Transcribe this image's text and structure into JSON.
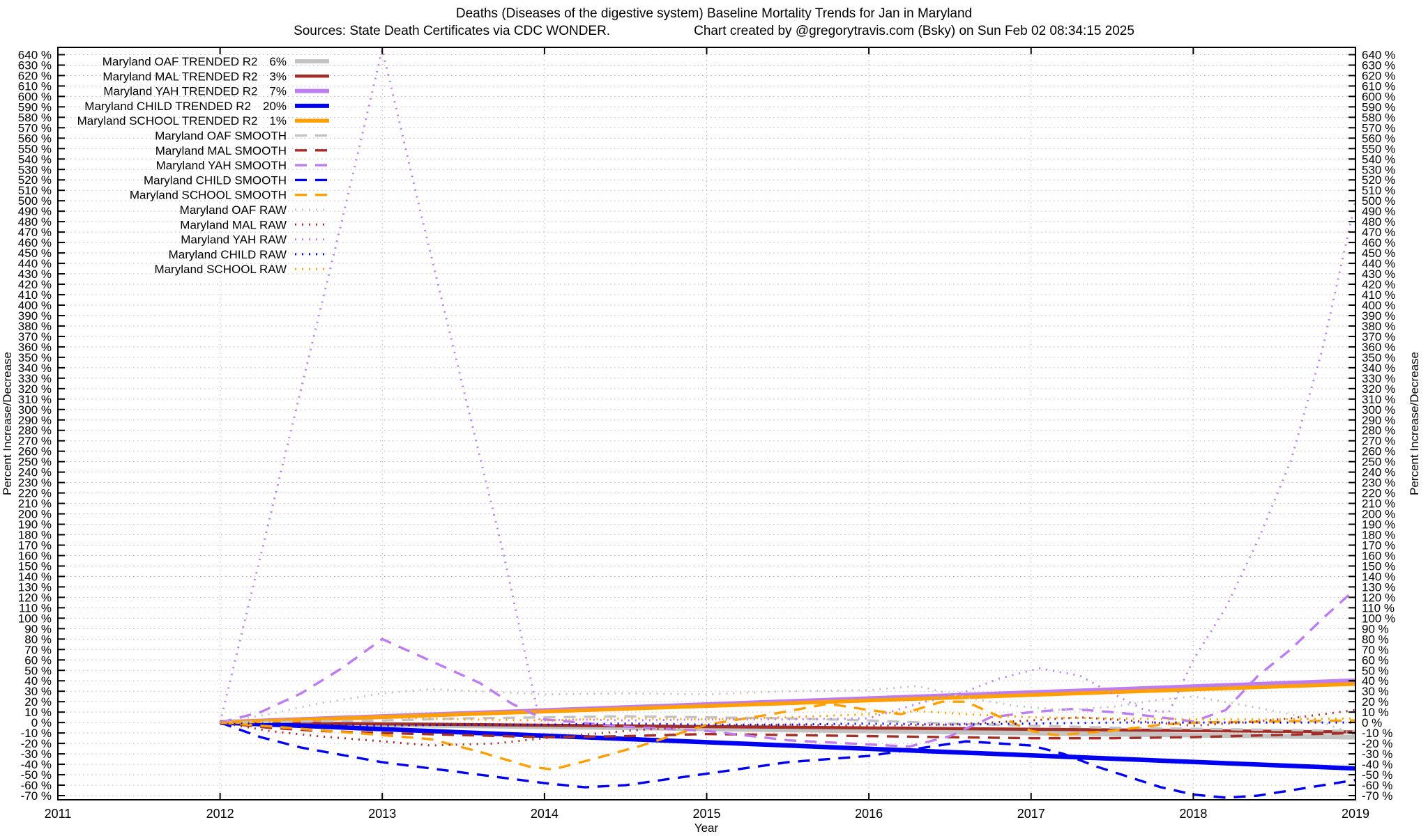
{
  "chart_data": {
    "type": "line",
    "title": "Deaths (Diseases of the digestive system)  Baseline Mortality Trends for Jan in Maryland",
    "sources": "Sources: State Death Certificates via CDC WONDER.",
    "credit": "Chart created by @gregorytravis.com (Bsky) on Sun Feb 02 08:34:15 2025",
    "xlabel": "Year",
    "ylabel_left": "Percent Increase/Decrease",
    "ylabel_right": "Percent Increase/Decrease",
    "xlim": [
      2011,
      2019
    ],
    "ylim": [
      -74,
      647
    ],
    "xticks": [
      2011,
      2012,
      2013,
      2014,
      2015,
      2016,
      2017,
      2018,
      2019
    ],
    "yticks": {
      "min": -70,
      "max": 640,
      "step": 10,
      "suffix": " %"
    },
    "grid": "dotted",
    "legend_position": "top-left-inside",
    "colors": {
      "gray": "#c3c3c3",
      "maroon": "#a42d26",
      "purple": "#bd7cf0",
      "blue": "#0000f2",
      "orange": "#ff9f00"
    },
    "groups": {
      "trended": {
        "style": "solid"
      },
      "smooth": {
        "style": "dashed"
      },
      "raw": {
        "style": "dotted"
      }
    },
    "series": [
      {
        "id": "oaf-trended",
        "label": "Maryland OAF TRENDED R2",
        "r2": "6%",
        "group": "trended",
        "color": "gray",
        "width": 7,
        "points": [
          [
            2012,
            0
          ],
          [
            2019,
            -14
          ]
        ]
      },
      {
        "id": "mal-trended",
        "label": "Maryland MAL TRENDED R2",
        "r2": "3%",
        "group": "trended",
        "color": "maroon",
        "width": 4.5,
        "points": [
          [
            2012,
            0
          ],
          [
            2019,
            -9
          ]
        ]
      },
      {
        "id": "yah-trended",
        "label": "Maryland YAH TRENDED R2",
        "r2": "7%",
        "group": "trended",
        "color": "purple",
        "width": 7,
        "points": [
          [
            2012,
            0
          ],
          [
            2019,
            40
          ]
        ]
      },
      {
        "id": "child-trended",
        "label": "Maryland CHILD TRENDED R2",
        "r2": "20%",
        "group": "trended",
        "color": "blue",
        "width": 6.5,
        "points": [
          [
            2012,
            0
          ],
          [
            2019,
            -44
          ]
        ]
      },
      {
        "id": "school-trended",
        "label": "Maryland SCHOOL TRENDED R2",
        "r2": "1%",
        "group": "trended",
        "color": "orange",
        "width": 5.5,
        "points": [
          [
            2012,
            0
          ],
          [
            2019,
            37
          ]
        ]
      },
      {
        "id": "oaf-smooth",
        "label": "Maryland OAF SMOOTH",
        "group": "smooth",
        "color": "gray",
        "width": 3.4,
        "points": [
          [
            2012,
            0
          ],
          [
            2012.5,
            1
          ],
          [
            2013,
            2
          ],
          [
            2013.5,
            4
          ],
          [
            2014,
            5
          ],
          [
            2014.5,
            6
          ],
          [
            2015,
            5
          ],
          [
            2015.5,
            4
          ],
          [
            2016,
            2
          ],
          [
            2016.5,
            -1
          ],
          [
            2017,
            -3
          ],
          [
            2017.5,
            -5
          ],
          [
            2018,
            -6
          ],
          [
            2018.5,
            -7
          ],
          [
            2019,
            -8
          ]
        ]
      },
      {
        "id": "mal-smooth",
        "label": "Maryland MAL SMOOTH",
        "group": "smooth",
        "color": "maroon",
        "width": 3.4,
        "points": [
          [
            2012,
            0
          ],
          [
            2012.3,
            -5
          ],
          [
            2012.6,
            -8
          ],
          [
            2013,
            -10
          ],
          [
            2013.5,
            -12
          ],
          [
            2014,
            -14
          ],
          [
            2014.5,
            -13
          ],
          [
            2015,
            -11
          ],
          [
            2015.5,
            -12
          ],
          [
            2016,
            -13
          ],
          [
            2016.5,
            -14
          ],
          [
            2017,
            -15
          ],
          [
            2017.5,
            -15
          ],
          [
            2018,
            -14
          ],
          [
            2018.5,
            -12
          ],
          [
            2019,
            -10
          ]
        ]
      },
      {
        "id": "yah-smooth",
        "label": "Maryland YAH SMOOTH",
        "group": "smooth",
        "color": "purple",
        "width": 3.4,
        "points": [
          [
            2012,
            0
          ],
          [
            2012.25,
            10
          ],
          [
            2012.5,
            28
          ],
          [
            2012.75,
            52
          ],
          [
            2013,
            80
          ],
          [
            2013.2,
            66
          ],
          [
            2013.4,
            52
          ],
          [
            2013.6,
            38
          ],
          [
            2013.8,
            18
          ],
          [
            2014,
            3
          ],
          [
            2014.5,
            -4
          ],
          [
            2015,
            -8
          ],
          [
            2015.5,
            -17
          ],
          [
            2016,
            -21
          ],
          [
            2016.25,
            -23
          ],
          [
            2016.5,
            -13
          ],
          [
            2016.75,
            5
          ],
          [
            2017,
            10
          ],
          [
            2017.25,
            13
          ],
          [
            2017.5,
            10
          ],
          [
            2017.75,
            6
          ],
          [
            2018,
            1
          ],
          [
            2018.2,
            12
          ],
          [
            2018.4,
            45
          ],
          [
            2018.6,
            70
          ],
          [
            2018.8,
            100
          ],
          [
            2019,
            128
          ]
        ]
      },
      {
        "id": "child-smooth",
        "label": "Maryland CHILD SMOOTH",
        "group": "smooth",
        "color": "blue",
        "width": 3.4,
        "points": [
          [
            2012,
            0
          ],
          [
            2012.25,
            -14
          ],
          [
            2012.5,
            -24
          ],
          [
            2013,
            -38
          ],
          [
            2013.5,
            -48
          ],
          [
            2014,
            -58
          ],
          [
            2014.25,
            -62
          ],
          [
            2014.5,
            -60
          ],
          [
            2015,
            -49
          ],
          [
            2015.5,
            -38
          ],
          [
            2016,
            -32
          ],
          [
            2016.3,
            -25
          ],
          [
            2016.6,
            -18
          ],
          [
            2017,
            -22
          ],
          [
            2017.2,
            -30
          ],
          [
            2017.4,
            -42
          ],
          [
            2017.6,
            -52
          ],
          [
            2017.8,
            -62
          ],
          [
            2018,
            -69
          ],
          [
            2018.2,
            -72
          ],
          [
            2018.4,
            -70
          ],
          [
            2018.6,
            -65
          ],
          [
            2018.8,
            -60
          ],
          [
            2019,
            -55
          ]
        ]
      },
      {
        "id": "school-smooth",
        "label": "Maryland SCHOOL SMOOTH",
        "group": "smooth",
        "color": "orange",
        "width": 3.4,
        "points": [
          [
            2012,
            0
          ],
          [
            2012.5,
            -6
          ],
          [
            2013,
            -12
          ],
          [
            2013.3,
            -16
          ],
          [
            2013.6,
            -28
          ],
          [
            2013.9,
            -42
          ],
          [
            2014.05,
            -45
          ],
          [
            2014.3,
            -35
          ],
          [
            2014.6,
            -22
          ],
          [
            2015,
            -2
          ],
          [
            2015.4,
            8
          ],
          [
            2015.75,
            18
          ],
          [
            2016,
            12
          ],
          [
            2016.2,
            8
          ],
          [
            2016.45,
            20
          ],
          [
            2016.6,
            20
          ],
          [
            2017,
            -8
          ],
          [
            2017.15,
            -12
          ],
          [
            2017.5,
            -8
          ],
          [
            2017.8,
            -2
          ],
          [
            2018,
            0
          ],
          [
            2018.5,
            1
          ],
          [
            2019,
            2
          ]
        ]
      },
      {
        "id": "oaf-raw",
        "label": "Maryland OAF RAW",
        "group": "raw",
        "color": "gray",
        "width": 3,
        "points": [
          [
            2012,
            0
          ],
          [
            2012.3,
            8
          ],
          [
            2012.6,
            18
          ],
          [
            2013,
            28
          ],
          [
            2013.3,
            32
          ],
          [
            2013.6,
            30
          ],
          [
            2014,
            27
          ],
          [
            2014.5,
            28
          ],
          [
            2015,
            27
          ],
          [
            2015.5,
            30
          ],
          [
            2016,
            31
          ],
          [
            2016.3,
            35
          ],
          [
            2016.6,
            24
          ],
          [
            2016.9,
            16
          ],
          [
            2017.2,
            12
          ],
          [
            2017.5,
            15
          ],
          [
            2017.8,
            22
          ],
          [
            2018,
            25
          ],
          [
            2018.3,
            17
          ],
          [
            2018.6,
            8
          ],
          [
            2018.8,
            0
          ],
          [
            2019,
            -12
          ]
        ]
      },
      {
        "id": "mal-raw",
        "label": "Maryland MAL RAW",
        "group": "raw",
        "color": "maroon",
        "width": 3,
        "points": [
          [
            2012,
            0
          ],
          [
            2012.3,
            -8
          ],
          [
            2012.6,
            -13
          ],
          [
            2013,
            -18
          ],
          [
            2013.3,
            -22
          ],
          [
            2013.7,
            -20
          ],
          [
            2014,
            -15
          ],
          [
            2014.5,
            -8
          ],
          [
            2015,
            -3
          ],
          [
            2015.5,
            -2
          ],
          [
            2016,
            -3
          ],
          [
            2016.5,
            -2
          ],
          [
            2017,
            2
          ],
          [
            2017.3,
            5
          ],
          [
            2017.6,
            2
          ],
          [
            2018,
            -3
          ],
          [
            2018.3,
            0
          ],
          [
            2018.6,
            4
          ],
          [
            2018.8,
            8
          ],
          [
            2019,
            12
          ]
        ]
      },
      {
        "id": "yah-raw",
        "label": "Maryland YAH RAW",
        "group": "raw",
        "color": "purple",
        "width": 3,
        "points": [
          [
            2012,
            0
          ],
          [
            2012.25,
            160
          ],
          [
            2012.5,
            320
          ],
          [
            2012.75,
            480
          ],
          [
            2013,
            645
          ],
          [
            2013.25,
            480
          ],
          [
            2013.5,
            320
          ],
          [
            2013.75,
            160
          ],
          [
            2013.97,
            2
          ],
          [
            2014.2,
            3
          ],
          [
            2014.5,
            2
          ],
          [
            2015,
            3
          ],
          [
            2015.5,
            3
          ],
          [
            2016,
            4
          ],
          [
            2016.3,
            18
          ],
          [
            2016.6,
            30
          ],
          [
            2016.8,
            42
          ],
          [
            2017.05,
            52
          ],
          [
            2017.3,
            45
          ],
          [
            2017.5,
            28
          ],
          [
            2017.7,
            12
          ],
          [
            2017.85,
            10
          ],
          [
            2018,
            60
          ],
          [
            2018.2,
            110
          ],
          [
            2018.4,
            175
          ],
          [
            2018.6,
            250
          ],
          [
            2018.8,
            360
          ],
          [
            2018.9,
            430
          ],
          [
            2019,
            500
          ]
        ]
      },
      {
        "id": "child-raw",
        "label": "Maryland CHILD RAW",
        "group": "raw",
        "color": "blue",
        "width": 3,
        "points": [
          [
            2012,
            0
          ],
          [
            2012.5,
            -2
          ],
          [
            2013,
            -3
          ],
          [
            2013.5,
            -2
          ],
          [
            2014,
            -2
          ],
          [
            2014.5,
            -1
          ],
          [
            2015,
            -2
          ],
          [
            2015.5,
            -2
          ],
          [
            2016,
            -1
          ],
          [
            2016.5,
            -2
          ],
          [
            2017,
            -1
          ],
          [
            2017.5,
            0
          ],
          [
            2018,
            0
          ],
          [
            2018.5,
            0
          ],
          [
            2019,
            0
          ]
        ]
      },
      {
        "id": "school-raw",
        "label": "Maryland SCHOOL RAW",
        "group": "raw",
        "color": "orange",
        "width": 3,
        "points": [
          [
            2012,
            0
          ],
          [
            2012.5,
            3
          ],
          [
            2013,
            5
          ],
          [
            2013.5,
            3
          ],
          [
            2014,
            2
          ],
          [
            2014.5,
            4
          ],
          [
            2015,
            3
          ],
          [
            2015.5,
            5
          ],
          [
            2016,
            8
          ],
          [
            2016.3,
            11
          ],
          [
            2016.6,
            8
          ],
          [
            2017,
            5
          ],
          [
            2017.5,
            4
          ],
          [
            2018,
            3
          ],
          [
            2018.5,
            3
          ],
          [
            2019,
            4
          ]
        ]
      }
    ]
  }
}
